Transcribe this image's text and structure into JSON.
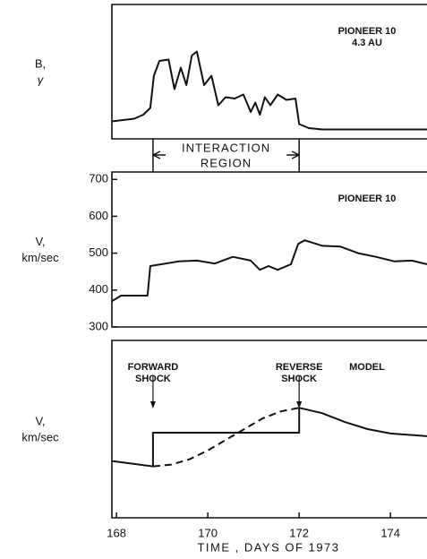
{
  "chart_data": [
    {
      "type": "line",
      "ylabel": [
        "B,",
        "γ"
      ],
      "annotations": [
        "PIONEER 10",
        "4.3 AU"
      ],
      "bracket": {
        "text": [
          "INTERACTION",
          "REGION"
        ],
        "x": [
          168.8,
          172.0
        ]
      },
      "xlim": [
        167.9,
        174.8
      ],
      "ylim": [
        0,
        10
      ],
      "series": [
        {
          "color": "#111111",
          "dashed": false,
          "x": [
            167.9,
            168.39,
            168.59,
            168.74,
            168.82,
            168.94,
            169.14,
            169.27,
            169.41,
            169.53,
            169.65,
            169.76,
            169.92,
            170.08,
            170.23,
            170.39,
            170.59,
            170.78,
            170.94,
            171.04,
            171.14,
            171.25,
            171.37,
            171.53,
            171.72,
            171.92,
            172.0,
            172.21,
            172.51,
            173.29,
            174.8
          ],
          "values": [
            1.3,
            1.5,
            1.8,
            2.3,
            4.7,
            5.8,
            5.9,
            3.7,
            5.3,
            4.0,
            6.2,
            6.5,
            4.0,
            4.7,
            2.5,
            3.1,
            3.0,
            3.3,
            2.0,
            2.7,
            1.8,
            3.1,
            2.5,
            3.3,
            2.9,
            3.0,
            1.1,
            0.8,
            0.7,
            0.7,
            0.7
          ]
        }
      ]
    },
    {
      "type": "line",
      "ylabel": [
        "V,",
        "km/sec"
      ],
      "annotations": [
        "PIONEER 10"
      ],
      "xlim": [
        167.9,
        174.8
      ],
      "ylim": [
        300,
        720
      ],
      "yticks": [
        300,
        400,
        500,
        600,
        700
      ],
      "series": [
        {
          "color": "#111111",
          "dashed": false,
          "x": [
            167.9,
            168.1,
            168.39,
            168.68,
            168.74,
            168.98,
            169.37,
            169.76,
            170.15,
            170.55,
            170.94,
            171.14,
            171.33,
            171.53,
            171.82,
            171.98,
            172.12,
            172.51,
            172.9,
            173.29,
            173.68,
            174.08,
            174.47,
            174.8
          ],
          "values": [
            370,
            385,
            385,
            385,
            465,
            470,
            478,
            480,
            472,
            490,
            480,
            455,
            465,
            455,
            470,
            525,
            535,
            520,
            518,
            500,
            490,
            478,
            480,
            470
          ]
        }
      ]
    },
    {
      "type": "line",
      "ylabel": [
        "V,",
        "km/sec"
      ],
      "annotations": [
        "MODEL"
      ],
      "shocks": [
        {
          "label": [
            "FORWARD",
            "SHOCK"
          ],
          "x": 168.8
        },
        {
          "label": [
            "REVERSE",
            "SHOCK"
          ],
          "x": 172.0
        }
      ],
      "xlabel": "TIME , DAYS OF 1973",
      "xlim": [
        167.9,
        174.8
      ],
      "ylim": [
        0,
        10
      ],
      "xticks": [
        168,
        170,
        172,
        174
      ],
      "series": [
        {
          "color": "#111111",
          "dashed": false,
          "x": [
            167.9,
            168.5,
            168.8,
            168.8,
            172.0,
            172.0,
            172.5,
            173.0,
            173.5,
            174.0,
            174.8
          ],
          "values": [
            3.2,
            3.0,
            2.9,
            4.8,
            4.8,
            6.2,
            5.9,
            5.4,
            5.0,
            4.75,
            4.6
          ]
        },
        {
          "color": "#111111",
          "dashed": true,
          "x": [
            168.8,
            169.2,
            169.6,
            170.0,
            170.4,
            170.8,
            171.2,
            171.6,
            172.0
          ],
          "values": [
            2.9,
            3.0,
            3.3,
            3.8,
            4.4,
            5.0,
            5.6,
            6.0,
            6.2
          ]
        }
      ]
    }
  ]
}
